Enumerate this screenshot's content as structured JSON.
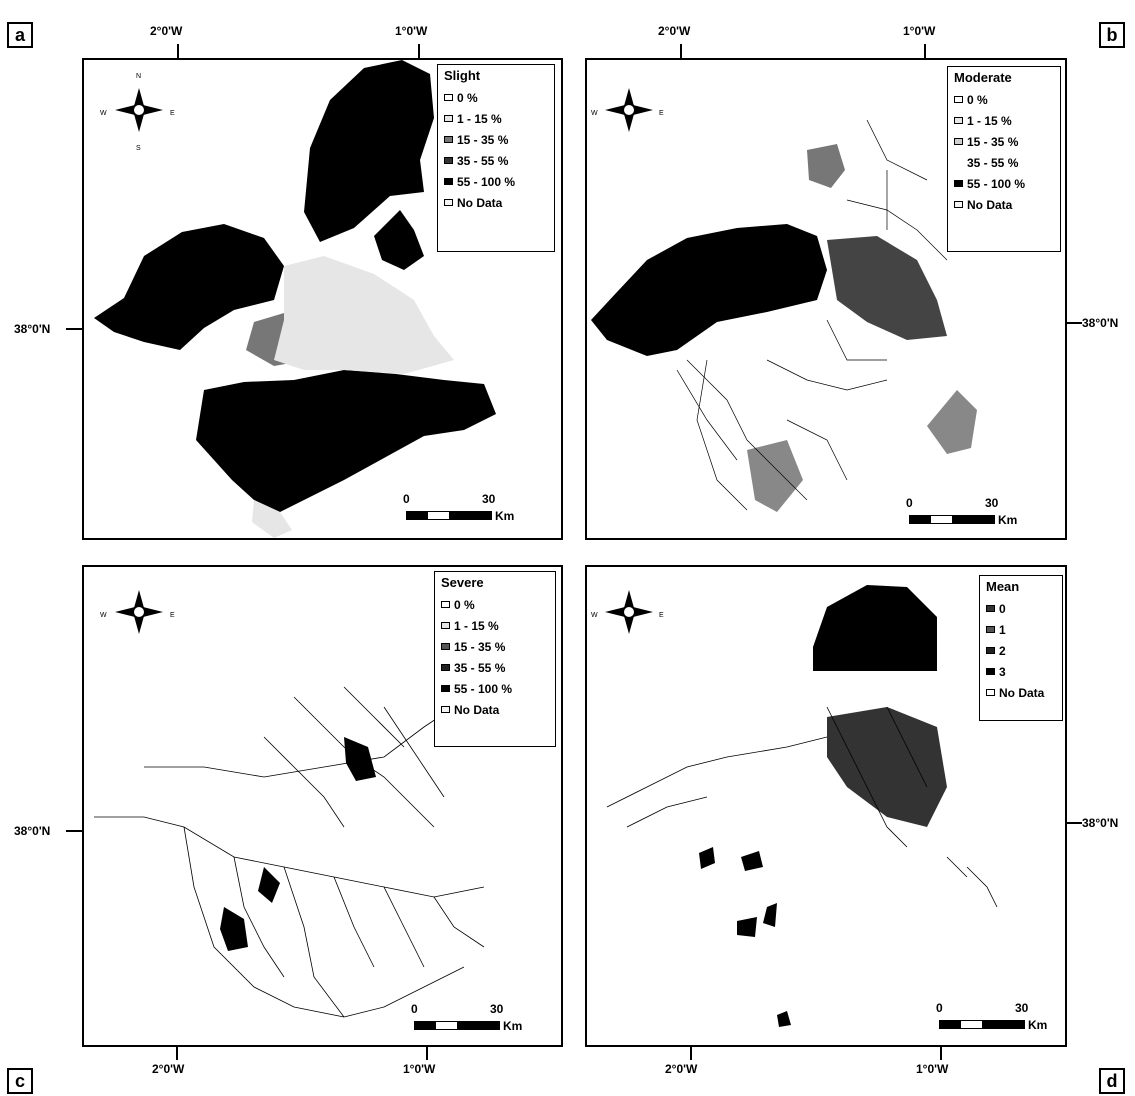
{
  "panels": [
    {
      "letter": "a",
      "legend_title": "Slight",
      "legend_items": [
        {
          "label": "0 %",
          "color": "#ffffff"
        },
        {
          "label": "1 - 15 %",
          "color": "#e6e6e6"
        },
        {
          "label": "15 - 35 %",
          "color": "#777777"
        },
        {
          "label": "35 - 55 %",
          "color": "#333333"
        },
        {
          "label": "55 - 100 %",
          "color": "#000000"
        },
        {
          "label": "No Data",
          "color": "#f4f4f4"
        }
      ]
    },
    {
      "letter": "b",
      "legend_title": "Moderate",
      "legend_items": [
        {
          "label": "0 %",
          "color": "#ffffff"
        },
        {
          "label": "1 - 15 %",
          "color": "#e6e6e6"
        },
        {
          "label": "15 - 35 %",
          "color": "#cfcfcf"
        },
        {
          "label": "35 - 55 %",
          "color": "#ffffff"
        },
        {
          "label": "55 - 100 %",
          "color": "#000000"
        },
        {
          "label": "No Data",
          "color": "#f4f4f4"
        }
      ]
    },
    {
      "letter": "c",
      "legend_title": "Severe",
      "legend_items": [
        {
          "label": "0 %",
          "color": "#ffffff"
        },
        {
          "label": "1 - 15 %",
          "color": "#e6e6e6"
        },
        {
          "label": "15 - 35 %",
          "color": "#555555"
        },
        {
          "label": "35 - 55 %",
          "color": "#222222"
        },
        {
          "label": "55 - 100 %",
          "color": "#000000"
        },
        {
          "label": "No Data",
          "color": "#f4f4f4"
        }
      ]
    },
    {
      "letter": "d",
      "legend_title": "Mean",
      "legend_items": [
        {
          "label": "0",
          "color": "#333333"
        },
        {
          "label": "1",
          "color": "#555555"
        },
        {
          "label": "2",
          "color": "#222222"
        },
        {
          "label": "3",
          "color": "#000000"
        },
        {
          "label": "No Data",
          "color": "#ffffff"
        }
      ]
    }
  ],
  "axes": {
    "lon_west": "2°0'W",
    "lon_east": "1°0'W",
    "lat": "38°0'N"
  },
  "scalebar": {
    "zero": "0",
    "max": "30",
    "unit": "Km"
  },
  "compass": {
    "west": "W",
    "east": "E",
    "north": "N",
    "south": "S"
  }
}
